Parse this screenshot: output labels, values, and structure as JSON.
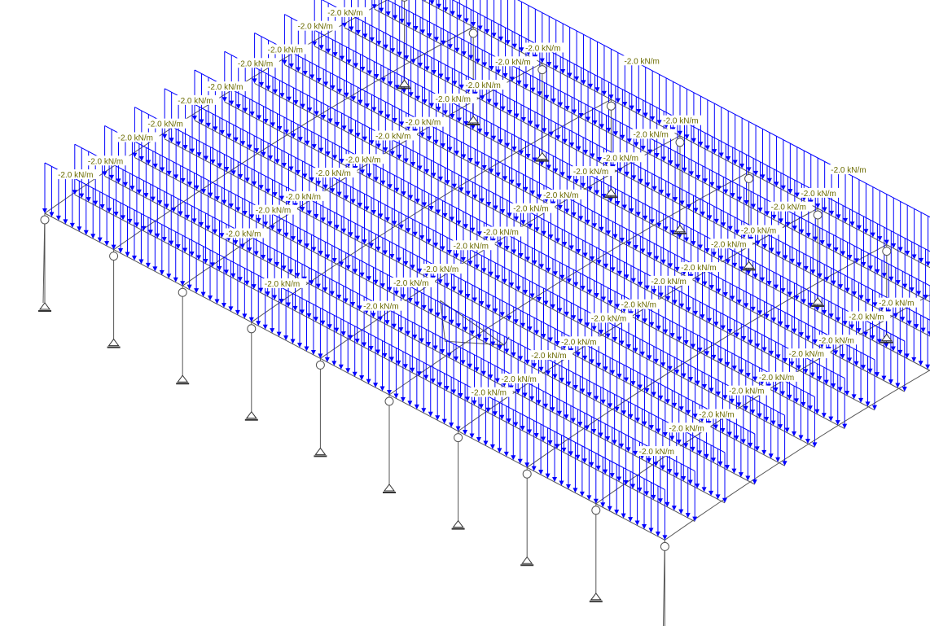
{
  "load_label": "-2.0 kN/m",
  "colors": {
    "background": "#ffffff",
    "load": "#0000ff",
    "label_text": "#6b6b00",
    "label_bg": "#ffffff",
    "frame": "#555555",
    "support": "#333333"
  }
}
